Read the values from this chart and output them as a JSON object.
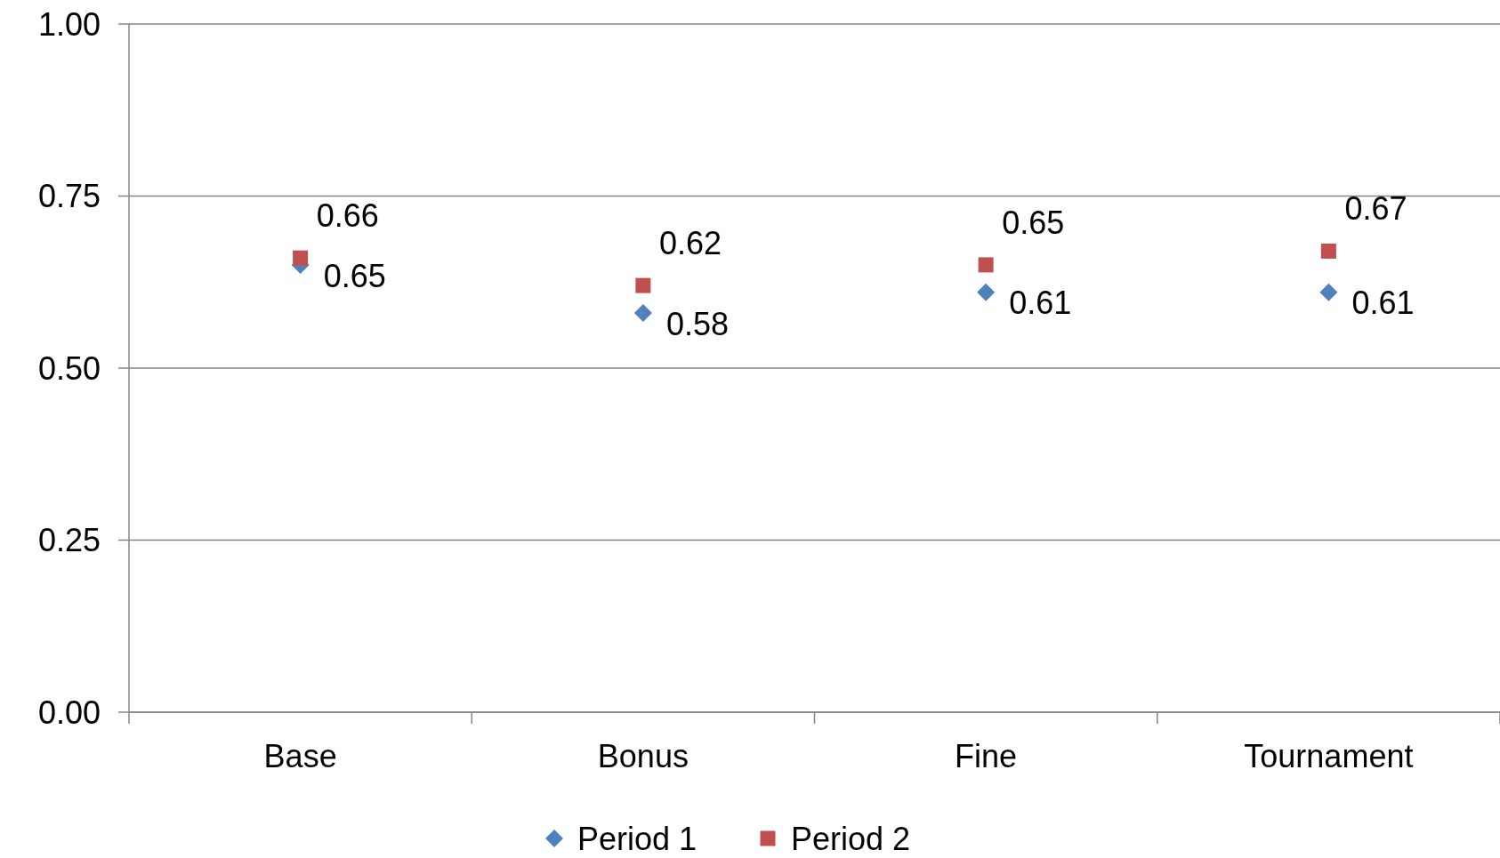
{
  "chart_data": {
    "type": "scatter",
    "categories": [
      "Base",
      "Bonus",
      "Fine",
      "Tournament"
    ],
    "series": [
      {
        "name": "Period 1",
        "color": "#4f81bd",
        "marker": "diamond",
        "values": [
          0.65,
          0.58,
          0.61,
          0.61
        ]
      },
      {
        "name": "Period 2",
        "color": "#c0504d",
        "marker": "square",
        "values": [
          0.66,
          0.62,
          0.65,
          0.67
        ]
      }
    ],
    "ylim": [
      0,
      1
    ],
    "yticks": [
      {
        "value": 0,
        "label": "0.00"
      },
      {
        "value": 0.25,
        "label": "0.25"
      },
      {
        "value": 0.5,
        "label": "0.50"
      },
      {
        "value": 0.75,
        "label": "0.75"
      },
      {
        "value": 1,
        "label": "1.00"
      }
    ],
    "grid": "y",
    "legend": "bottom",
    "data_labels": true
  }
}
